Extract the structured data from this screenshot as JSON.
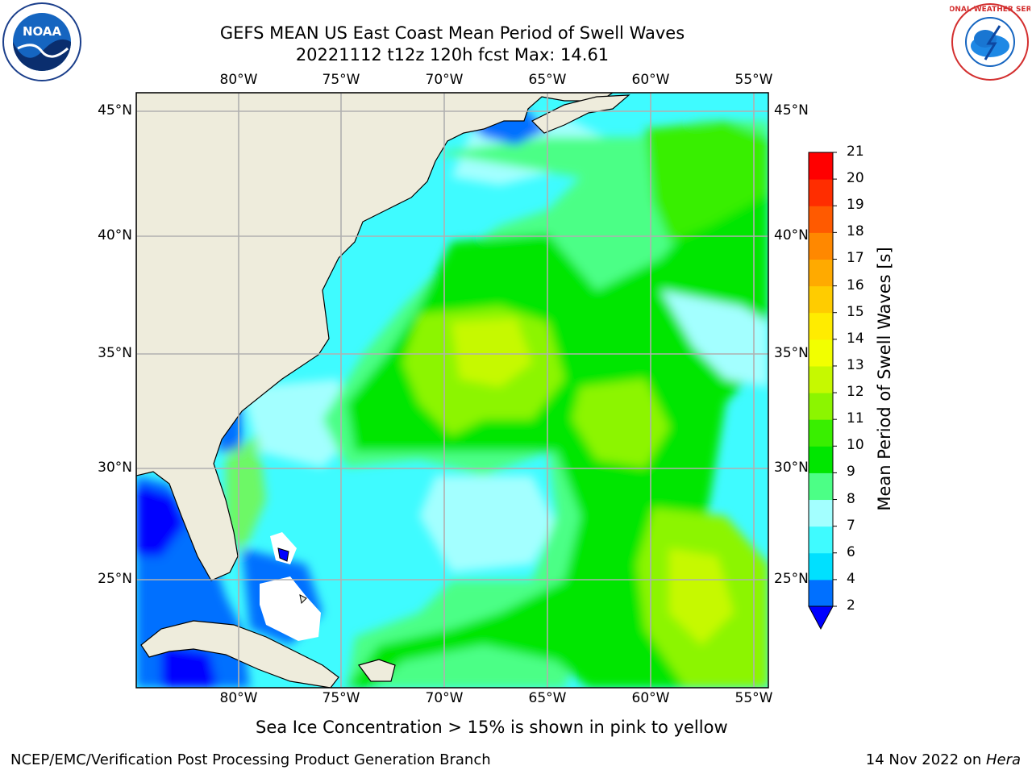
{
  "header": {
    "title_line1": "GEFS MEAN US East Coast Mean Period of Swell Waves",
    "title_line2": "20221112 t12z 120h fcst   Max: 14.61"
  },
  "logos": {
    "left": "noara-logo",
    "left_text": "NOAA",
    "right": "national-weather-service-logo",
    "right_text": "NATIONAL WEATHER SERVICE"
  },
  "map": {
    "lon_labels": [
      "80°W",
      "75°W",
      "70°W",
      "65°W",
      "60°W",
      "55°W"
    ],
    "lat_labels": [
      "45°N",
      "40°N",
      "35°N",
      "30°N",
      "25°N"
    ],
    "lon_range": [
      -85,
      -54
    ],
    "lat_range": [
      20.5,
      46
    ],
    "colors": {
      "land": "#eeecdc",
      "missing": "#ffffff",
      "grid": "#b0b0b0"
    }
  },
  "colorbar": {
    "label": "Mean Period of Swell Waves [s]",
    "ticks": [
      "2",
      "4",
      "6",
      "7",
      "8",
      "9",
      "10",
      "11",
      "12",
      "13",
      "14",
      "15",
      "16",
      "17",
      "18",
      "19",
      "20",
      "21"
    ],
    "colors": [
      "#0000ff",
      "#0070ff",
      "#00e0ff",
      "#3ffbff",
      "#a3ffff",
      "#4cff86",
      "#00e600",
      "#39ef00",
      "#8cf500",
      "#c6f900",
      "#f2ff00",
      "#ffec00",
      "#ffcc00",
      "#ffaa00",
      "#ff8800",
      "#ff5a00",
      "#ff2d00",
      "#ff0000"
    ]
  },
  "footer": {
    "note": "Sea Ice Concentration > 15% is shown in pink to yellow",
    "credit": "NCEP/EMC/Verification Post Processing Product Generation Branch",
    "date": "14 Nov 2022 on ",
    "machine": "Hera"
  }
}
